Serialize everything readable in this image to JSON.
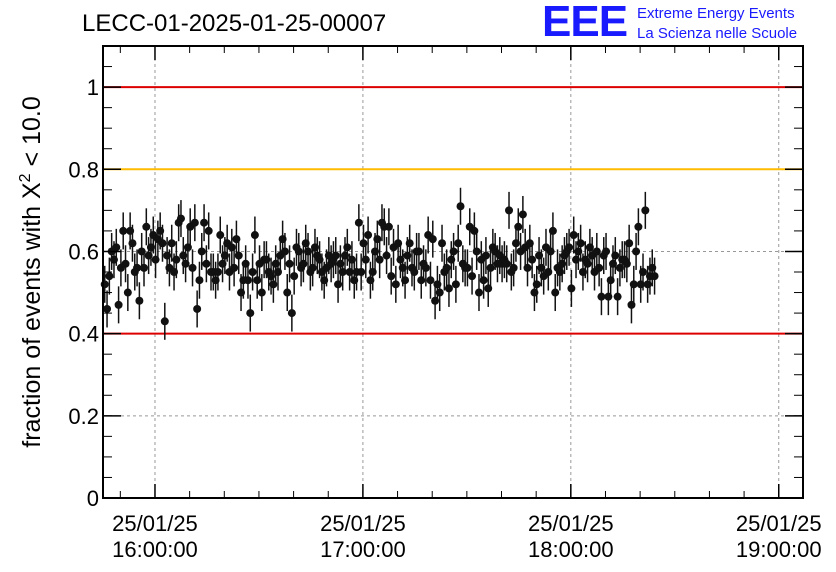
{
  "title": "LECC-01-2025-01-25-00007",
  "logo": {
    "mark": "EEE",
    "line1": "Extreme Energy Events",
    "line2": "La Scienza nelle Scuole"
  },
  "colors": {
    "upper_line": "#dd0000",
    "mid_line": "#ffbb00",
    "lower_line": "#dd0000",
    "points": "#111111",
    "grid": "#999999",
    "logo": "#1a1aff"
  },
  "chart_data": {
    "type": "scatter",
    "title": "LECC-01-2025-01-25-00007",
    "ylabel": "fraction of events with X² < 10.0",
    "xlabel": "",
    "ylim": [
      0,
      1.1
    ],
    "xlim": [
      "2025-01-25T15:45:00",
      "2025-01-25T19:07:00"
    ],
    "yticks": [
      "0",
      "0.2",
      "0.4",
      "0.6",
      "0.8",
      "1"
    ],
    "xticks": [
      {
        "date": "25/01/25",
        "time": "16:00:00",
        "t": "2025-01-25T16:00:00"
      },
      {
        "date": "25/01/25",
        "time": "17:00:00",
        "t": "2025-01-25T17:00:00"
      },
      {
        "date": "25/01/25",
        "time": "18:00:00",
        "t": "2025-01-25T18:00:00"
      },
      {
        "date": "25/01/25",
        "time": "19:00:00",
        "t": "2025-01-25T19:00:00"
      }
    ],
    "grid": true,
    "reference_lines": [
      {
        "y": 1.0,
        "color": "red"
      },
      {
        "y": 0.8,
        "color": "orange"
      },
      {
        "y": 0.4,
        "color": "red"
      }
    ],
    "error_bar": 0.045,
    "series": [
      {
        "t_start": "2025-01-25T15:45:30",
        "t_step_seconds": 40,
        "values": [
          0.52,
          0.46,
          0.54,
          0.6,
          0.58,
          0.61,
          0.47,
          0.56,
          0.65,
          0.57,
          0.5,
          0.65,
          0.62,
          0.55,
          0.56,
          0.48,
          0.6,
          0.56,
          0.66,
          0.59,
          0.61,
          0.64,
          0.58,
          0.63,
          0.65,
          0.62,
          0.43,
          0.59,
          0.56,
          0.62,
          0.55,
          0.58,
          0.67,
          0.68,
          0.59,
          0.57,
          0.61,
          0.66,
          0.56,
          0.67,
          0.46,
          0.53,
          0.6,
          0.67,
          0.57,
          0.65,
          0.55,
          0.55,
          0.53,
          0.55,
          0.64,
          0.57,
          0.59,
          0.62,
          0.55,
          0.61,
          0.56,
          0.63,
          0.59,
          0.5,
          0.53,
          0.57,
          0.53,
          0.45,
          0.55,
          0.64,
          0.53,
          0.57,
          0.5,
          0.58,
          0.58,
          0.55,
          0.54,
          0.52,
          0.57,
          0.55,
          0.59,
          0.63,
          0.6,
          0.5,
          0.57,
          0.45,
          0.54,
          0.61,
          0.6,
          0.56,
          0.57,
          0.62,
          0.6,
          0.55,
          0.56,
          0.61,
          0.59,
          0.58,
          0.55,
          0.53,
          0.56,
          0.59,
          0.57,
          0.58,
          0.59,
          0.52,
          0.57,
          0.55,
          0.59,
          0.61,
          0.55,
          0.58,
          0.53,
          0.55,
          0.67,
          0.55,
          0.62,
          0.58,
          0.64,
          0.53,
          0.55,
          0.6,
          0.63,
          0.58,
          0.67,
          0.66,
          0.59,
          0.66,
          0.54,
          0.61,
          0.52,
          0.62,
          0.58,
          0.56,
          0.53,
          0.59,
          0.62,
          0.56,
          0.55,
          0.6,
          0.6,
          0.53,
          0.57,
          0.56,
          0.64,
          0.53,
          0.63,
          0.48,
          0.52,
          0.5,
          0.62,
          0.55,
          0.56,
          0.51,
          0.58,
          0.6,
          0.52,
          0.62,
          0.71,
          0.57,
          0.56,
          0.56,
          0.66,
          0.54,
          0.65,
          0.6,
          0.5,
          0.58,
          0.53,
          0.59,
          0.51,
          0.56,
          0.61,
          0.6,
          0.57,
          0.59,
          0.57,
          0.58,
          0.57,
          0.7,
          0.55,
          0.56,
          0.62,
          0.66,
          0.6,
          0.69,
          0.61,
          0.56,
          0.62,
          0.58,
          0.5,
          0.52,
          0.59,
          0.56,
          0.54,
          0.61,
          0.55,
          0.6,
          0.65,
          0.5,
          0.56,
          0.55,
          0.57,
          0.59,
          0.6,
          0.61,
          0.51,
          0.64,
          0.58,
          0.6,
          0.62,
          0.55,
          0.58,
          0.57,
          0.61,
          0.59,
          0.55,
          0.6,
          0.56,
          0.49,
          0.59,
          0.6,
          0.49,
          0.53,
          0.57,
          0.59,
          0.49,
          0.56,
          0.58,
          0.58,
          0.57,
          0.62,
          0.47,
          0.52,
          0.6,
          0.66,
          0.52,
          0.55,
          0.7,
          0.52,
          0.54,
          0.56,
          0.54
        ]
      }
    ]
  }
}
